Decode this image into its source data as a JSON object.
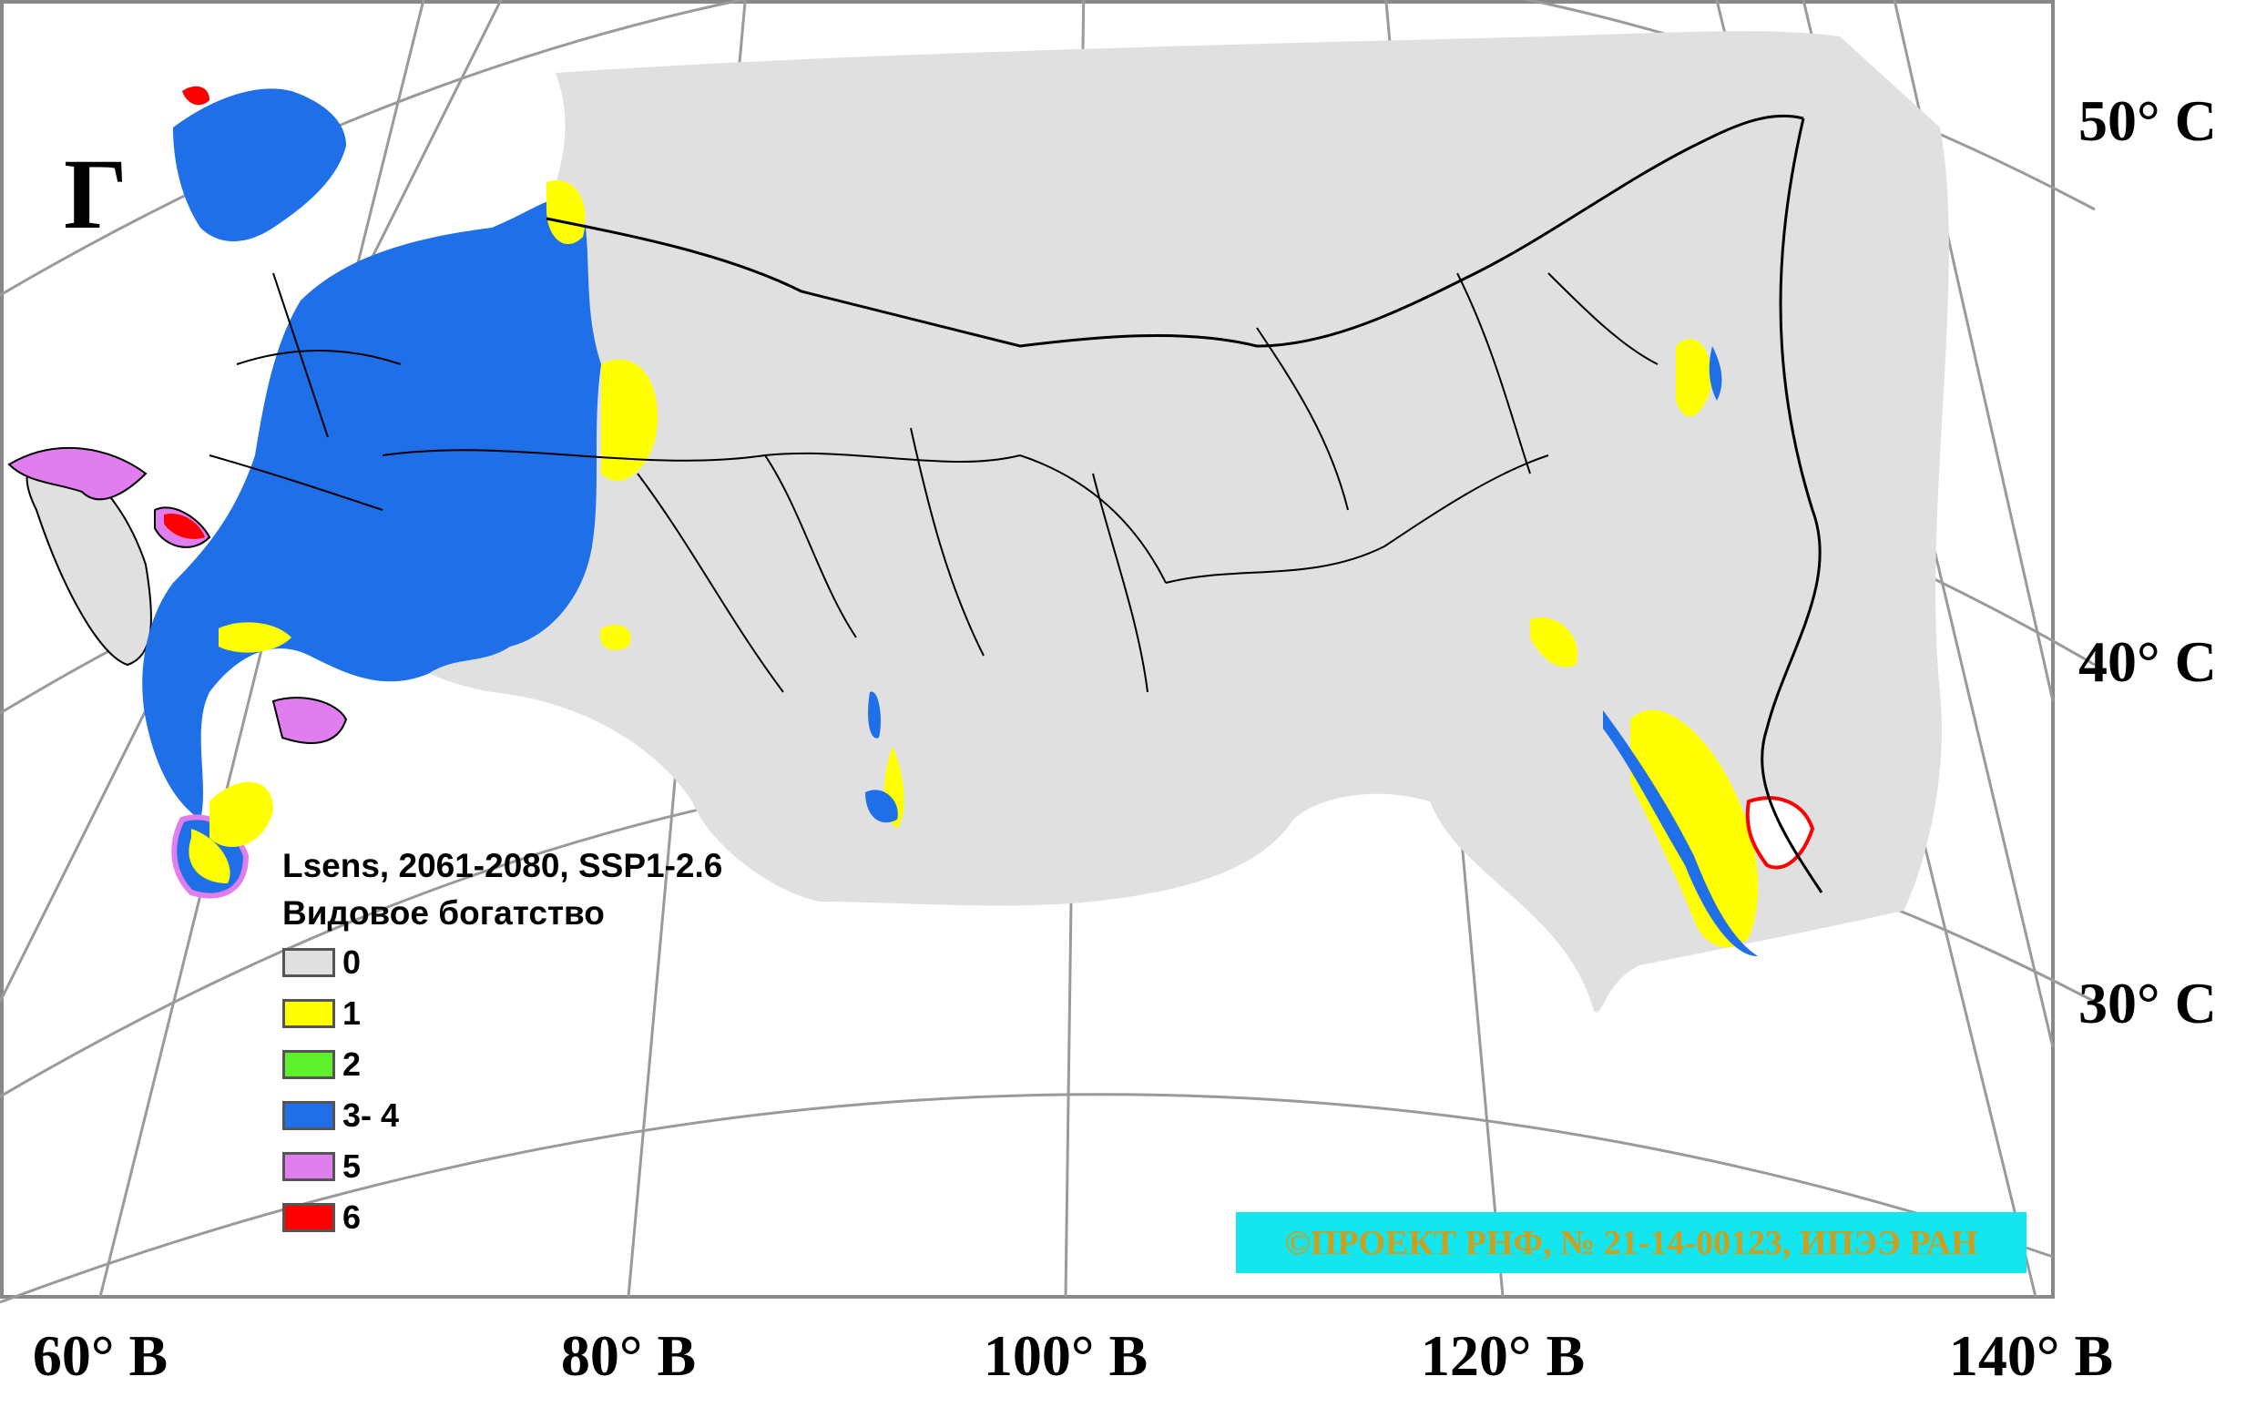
{
  "panel_letter": "Г",
  "latitude_labels": [
    "50° С",
    "40° С",
    "30° С"
  ],
  "longitude_labels": [
    "60° В",
    "80° В",
    "100° В",
    "120° В",
    "140° В"
  ],
  "legend": {
    "title_line1": "Lsens, 2061-2080, SSP1-2.6",
    "title_line2": "Видовое богатство",
    "items": [
      {
        "label": "0",
        "color": "#e0e0e0"
      },
      {
        "label": "1",
        "color": "#ffff00"
      },
      {
        "label": "2",
        "color": "#5ef02a"
      },
      {
        "label": "3- 4",
        "color": "#1f6fe8"
      },
      {
        "label": "5",
        "color": "#e07ef0"
      },
      {
        "label": "6",
        "color": "#ff0000"
      }
    ]
  },
  "copyright": "©ПРОЕКТ РНФ, № 21-14-00123, ИПЭЭ РАН",
  "colors": {
    "background_land": "#e0e0e0",
    "richness_1": "#ffff00",
    "richness_3_4": "#1f6fe8",
    "richness_5": "#e07ef0",
    "richness_6": "#ff0000",
    "copyright_bg": "#14e6ef",
    "copyright_text": "#caa01e"
  }
}
